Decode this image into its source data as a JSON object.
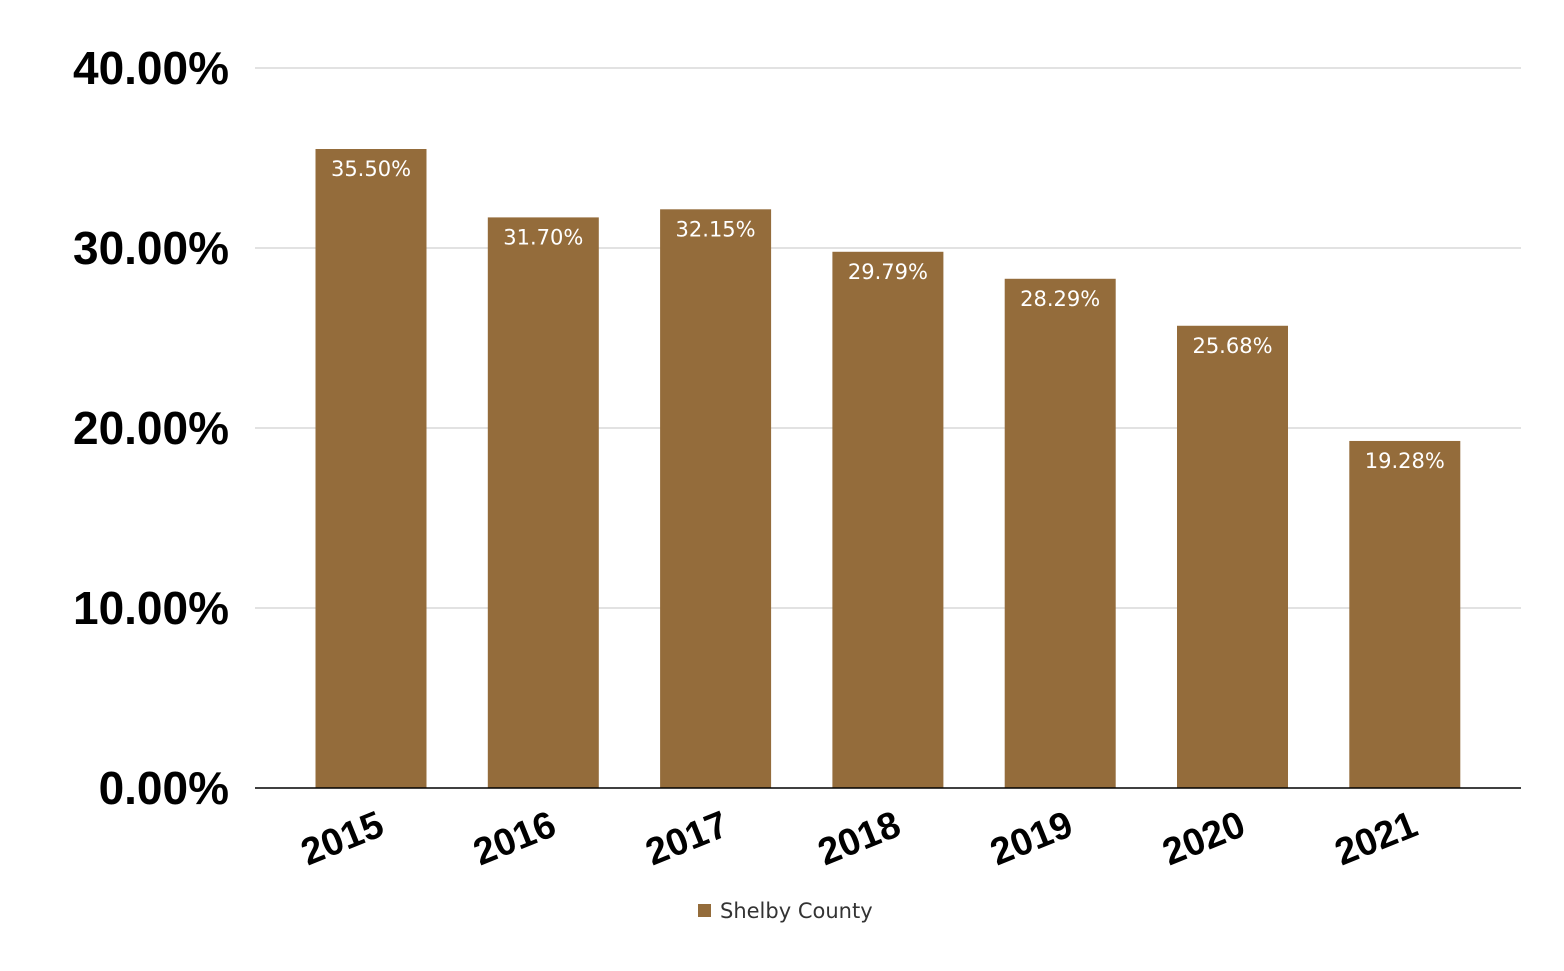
{
  "chart_data": {
    "type": "bar",
    "categories": [
      "2015",
      "2016",
      "2017",
      "2018",
      "2019",
      "2020",
      "2021"
    ],
    "series": [
      {
        "name": "Shelby County",
        "values": [
          35.5,
          31.7,
          32.15,
          29.79,
          28.29,
          25.68,
          19.28
        ],
        "labels": [
          "35.50%",
          "31.70%",
          "32.15%",
          "29.79%",
          "28.29%",
          "25.68%",
          "19.28%"
        ],
        "color": "#946c3b"
      }
    ],
    "y_ticks": [
      "0.00%",
      "10.00%",
      "20.00%",
      "30.00%",
      "40.00%"
    ],
    "ylim": [
      0,
      40
    ],
    "grid": true,
    "legend_position": "bottom-center",
    "colors": {
      "bar": "#946c3b",
      "gridline": "#d9d9d9",
      "axis": "#000000"
    }
  }
}
